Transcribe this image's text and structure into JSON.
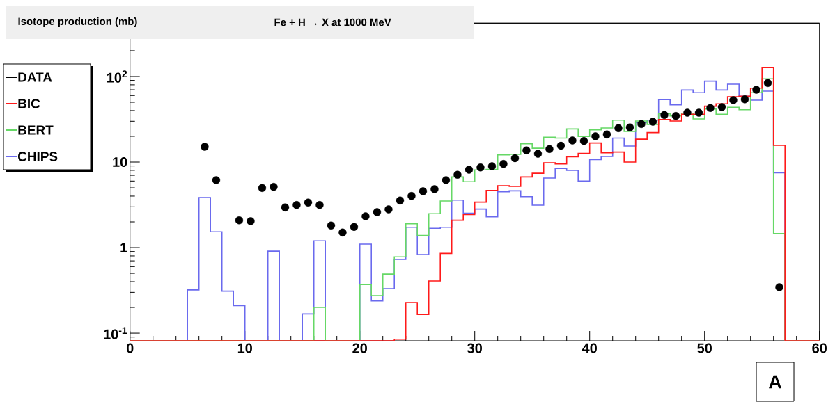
{
  "chart_data": {
    "type": "histogram",
    "title": "Isotope production (mb)",
    "subtitle": "Fe + H → X at 1000 MeV",
    "xlabel": "A",
    "xlim": [
      0,
      60
    ],
    "ylim": [
      0.0815,
      420
    ],
    "log": true,
    "legend": "left",
    "marker": "circle",
    "xticks": [
      0,
      10,
      20,
      30,
      40,
      50,
      60
    ],
    "yticks": [
      {
        "value": 0.1,
        "label": "10$^{-1}$"
      },
      1,
      10,
      {
        "value": 100,
        "label": "10$^{2}$"
      }
    ],
    "bins": [
      0,
      1,
      2,
      3,
      4,
      5,
      6,
      7,
      8,
      9,
      10,
      11,
      12,
      13,
      14,
      15,
      16,
      17,
      18,
      19,
      20,
      21,
      22,
      23,
      24,
      25,
      26,
      27,
      28,
      29,
      30,
      31,
      32,
      33,
      34,
      35,
      36,
      37,
      38,
      39,
      40,
      41,
      42,
      43,
      44,
      45,
      46,
      47,
      48,
      49,
      50,
      51,
      52,
      53,
      54,
      55,
      56,
      57,
      58,
      59,
      60
    ],
    "series": [
      {
        "name": "DATA",
        "type": "scatter",
        "color": "#000000",
        "x": [
          6.5,
          7.5,
          9.5,
          10.5,
          11.5,
          12.5,
          13.5,
          14.5,
          15.5,
          16.5,
          17.5,
          18.5,
          19.5,
          20.5,
          21.5,
          22.5,
          23.5,
          24.5,
          25.5,
          26.5,
          27.5,
          28.5,
          29.5,
          30.5,
          31.5,
          32.5,
          33.5,
          34.5,
          35.5,
          36.5,
          37.5,
          38.5,
          39.5,
          40.5,
          41.5,
          42.5,
          43.5,
          44.5,
          45.5,
          46.5,
          47.5,
          48.5,
          49.5,
          50.5,
          51.5,
          52.5,
          53.5,
          54.5,
          55.5,
          56.5
        ],
        "values": [
          15.1,
          6.15,
          2.09,
          2.04,
          4.98,
          5.13,
          2.95,
          3.15,
          3.36,
          3.15,
          1.81,
          1.5,
          1.75,
          2.32,
          2.6,
          2.8,
          3.55,
          4.02,
          4.56,
          4.82,
          6.15,
          7.1,
          8.15,
          8.66,
          8.93,
          9.5,
          11.1,
          13.7,
          12.5,
          14.2,
          15.5,
          17.9,
          17.6,
          20.0,
          21.0,
          24.9,
          25.4,
          27.8,
          29.6,
          35.5,
          34.6,
          37.7,
          37.7,
          42.9,
          43.9,
          52.9,
          54.2,
          70.1,
          84.0,
          0.344
        ]
      },
      {
        "name": "BIC",
        "color": "#ff1a1a",
        "values": [
          null,
          null,
          null,
          null,
          null,
          null,
          null,
          null,
          null,
          null,
          null,
          null,
          null,
          null,
          null,
          null,
          null,
          null,
          null,
          null,
          null,
          null,
          null,
          0.085,
          0.228,
          0.165,
          0.407,
          0.855,
          2.09,
          2.44,
          3.4,
          4.65,
          5.3,
          5.2,
          6.7,
          7.4,
          9.8,
          9.5,
          11.5,
          12.6,
          16.7,
          12.8,
          13.1,
          10.0,
          18.5,
          22.1,
          31.5,
          30.2,
          36.2,
          36.2,
          45.0,
          47.9,
          58.0,
          58.9,
          73.1,
          127,
          15.7,
          null,
          null,
          null
        ]
      },
      {
        "name": "BERT",
        "color": "#66d866",
        "values": [
          null,
          null,
          null,
          null,
          null,
          null,
          null,
          null,
          null,
          null,
          null,
          null,
          null,
          null,
          null,
          null,
          0.2,
          null,
          null,
          null,
          0.37,
          0.275,
          0.49,
          0.78,
          1.9,
          1.39,
          2.49,
          3.51,
          6.7,
          5.9,
          8.1,
          8.2,
          12.1,
          12.3,
          16.4,
          14.5,
          19.5,
          19.1,
          24.4,
          19.9,
          23.8,
          25.0,
          30.9,
          22.8,
          30.2,
          27.5,
          36.9,
          34.6,
          37.2,
          31.9,
          41.7,
          36.2,
          43.6,
          40.9,
          64.6,
          94.0,
          1.46,
          null,
          null,
          null
        ]
      },
      {
        "name": "CHIPS",
        "color": "#6a6aee",
        "values": [
          null,
          null,
          null,
          null,
          null,
          0.32,
          3.85,
          1.53,
          0.31,
          0.21,
          null,
          null,
          0.91,
          null,
          null,
          0.168,
          1.2,
          null,
          null,
          null,
          1.1,
          0.238,
          0.331,
          0.73,
          1.73,
          0.83,
          1.68,
          1.73,
          3.59,
          2.52,
          2.82,
          2.29,
          4.5,
          4.61,
          3.94,
          3.13,
          6.5,
          8.4,
          8.0,
          6.0,
          10.7,
          11.6,
          19.1,
          15.4,
          29.0,
          30.9,
          53.6,
          46.7,
          69.6,
          64.6,
          88.3,
          69.6,
          81.4,
          58.9,
          52.9,
          67.5,
          7.5,
          null,
          null,
          null
        ]
      }
    ]
  }
}
